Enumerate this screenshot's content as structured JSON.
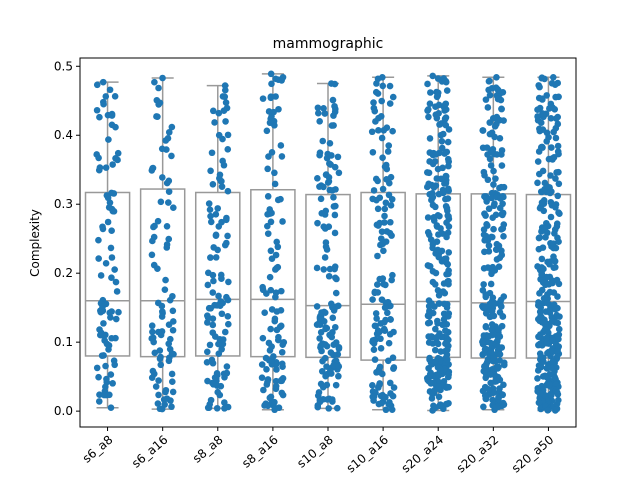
{
  "chart_data": {
    "type": "box-strip",
    "title": "mammographic",
    "ylabel": "Complexity",
    "xlabel": "",
    "ylim": [
      -0.023,
      0.512
    ],
    "yticks": [
      0.0,
      0.1,
      0.2,
      0.3,
      0.4,
      0.5
    ],
    "ytick_labels": [
      "0.0",
      "0.1",
      "0.2",
      "0.3",
      "0.4",
      "0.5"
    ],
    "categories": [
      "s6_a8",
      "s6_a16",
      "s8_a8",
      "s8_a16",
      "s10_a8",
      "s10_a16",
      "s20_a24",
      "s20_a32",
      "s20_a50"
    ],
    "boxes": [
      {
        "whislo": 0.005,
        "q1": 0.08,
        "med": 0.16,
        "q3": 0.317,
        "whishi": 0.477
      },
      {
        "whislo": 0.003,
        "q1": 0.079,
        "med": 0.16,
        "q3": 0.322,
        "whishi": 0.483
      },
      {
        "whislo": 0.004,
        "q1": 0.08,
        "med": 0.162,
        "q3": 0.317,
        "whishi": 0.472
      },
      {
        "whislo": 0.002,
        "q1": 0.079,
        "med": 0.162,
        "q3": 0.321,
        "whishi": 0.489
      },
      {
        "whislo": 0.004,
        "q1": 0.078,
        "med": 0.153,
        "q3": 0.314,
        "whishi": 0.475
      },
      {
        "whislo": 0.002,
        "q1": 0.074,
        "med": 0.155,
        "q3": 0.317,
        "whishi": 0.484
      },
      {
        "whislo": 0.001,
        "q1": 0.078,
        "med": 0.159,
        "q3": 0.315,
        "whishi": 0.486
      },
      {
        "whislo": 0.002,
        "q1": 0.077,
        "med": 0.157,
        "q3": 0.315,
        "whishi": 0.484
      },
      {
        "whislo": 0.001,
        "q1": 0.077,
        "med": 0.159,
        "q3": 0.314,
        "whishi": 0.484
      }
    ],
    "points_per_category": [
      90,
      90,
      110,
      110,
      140,
      140,
      260,
      260,
      300
    ],
    "box_color": "#999999",
    "point_color": "#1f77b4",
    "grid": false,
    "legend": "none"
  }
}
